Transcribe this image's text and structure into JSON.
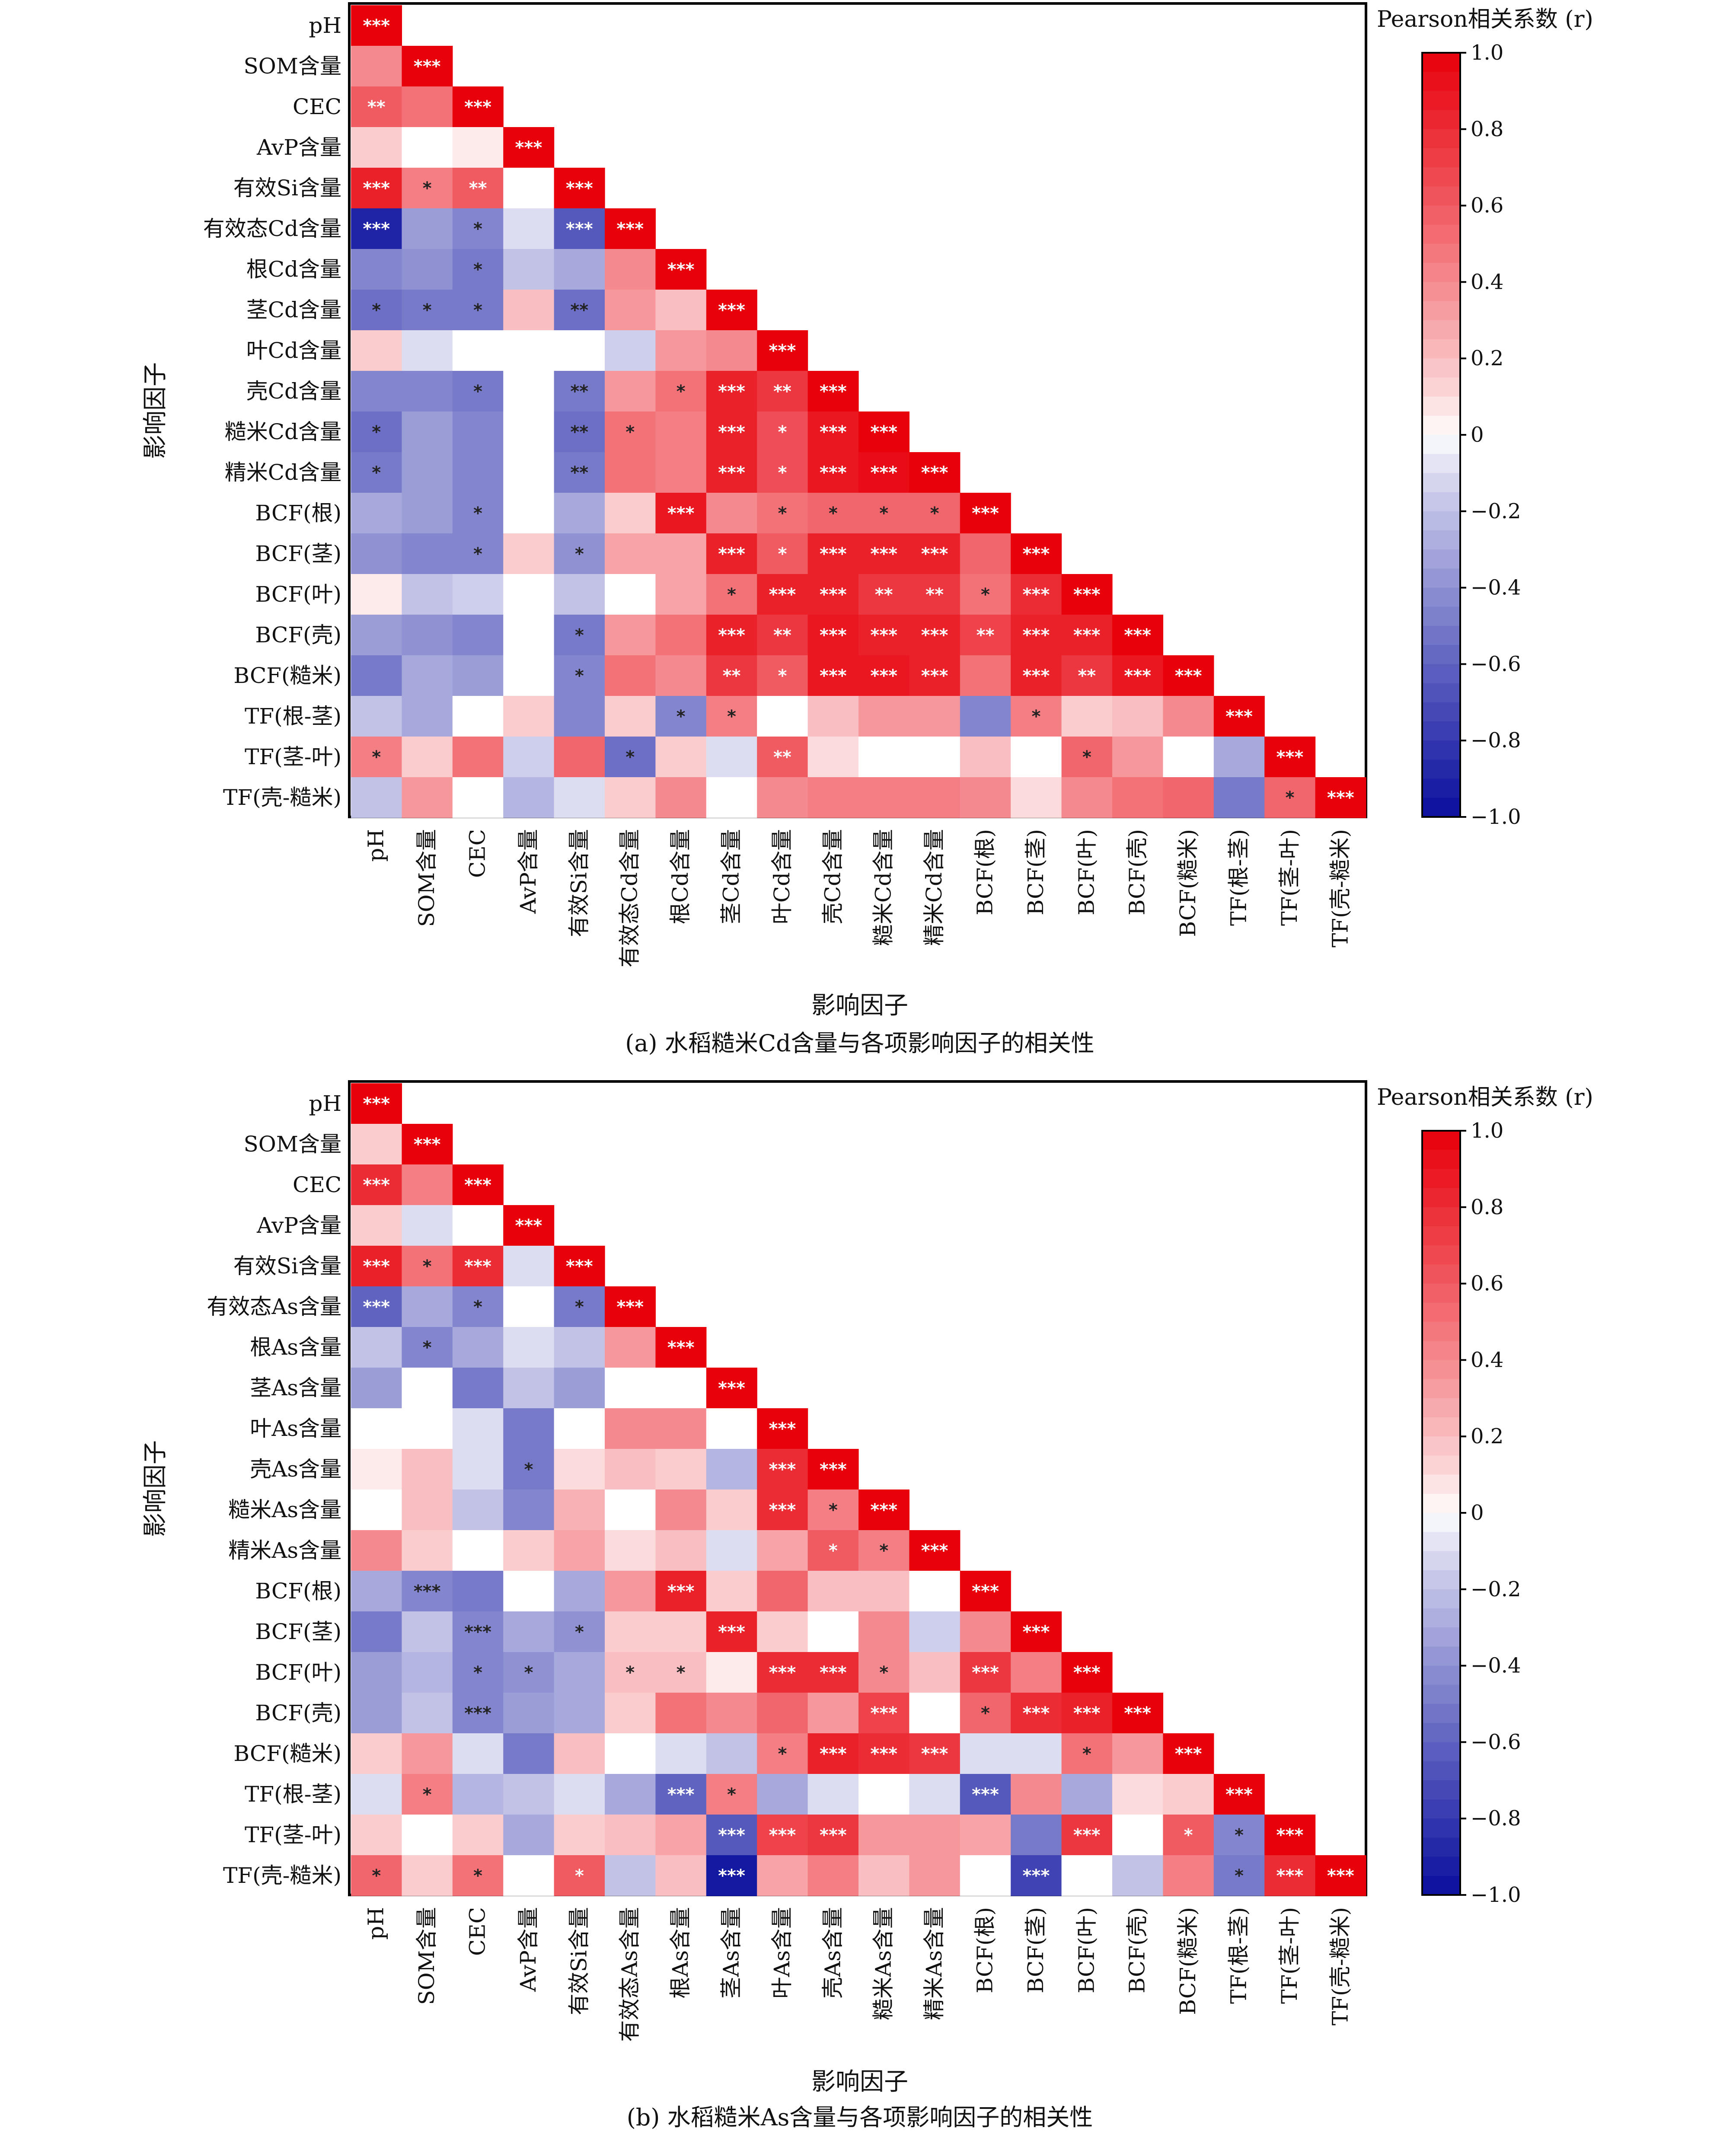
{
  "chart_data": [
    {
      "type": "heatmap",
      "panel": "a",
      "caption": "(a) 水稻糙米Cd含量与各项影响因子的相关性",
      "xlabel": "影响因子",
      "ylabel": "影响因子",
      "colorbar_title": "Pearson相关系数 (r)",
      "colorbar_ticks": [
        "1.0",
        "0.8",
        "0.6",
        "0.4",
        "0.2",
        "0",
        "−0.2",
        "−0.4",
        "−0.6",
        "−0.8",
        "−1.0"
      ],
      "colorbar_range": [
        -1,
        1
      ],
      "colors": {
        "positive": "#e8000b",
        "negative": "#0a0f9e",
        "zero": "#ffffff"
      },
      "labels": [
        "pH",
        "SOM含量",
        "CEC",
        "AvP含量",
        "有效Si含量",
        "有效态Cd含量",
        "根Cd含量",
        "茎Cd含量",
        "叶Cd含量",
        "壳Cd含量",
        "糙米Cd含量",
        "精米Cd含量",
        "BCF(根)",
        "BCF(茎)",
        "BCF(叶)",
        "BCF(壳)",
        "BCF(糙米)",
        "TF(根-茎)",
        "TF(茎-叶)",
        "TF(壳-糙米)"
      ],
      "values": [
        [
          1.0
        ],
        [
          0.4,
          1.0
        ],
        [
          0.6,
          0.5,
          1.0
        ],
        [
          0.15,
          0.0,
          0.05,
          1.0
        ],
        [
          0.85,
          0.45,
          0.6,
          0.0,
          1.0
        ],
        [
          -0.9,
          -0.35,
          -0.45,
          -0.1,
          -0.65,
          1.0
        ],
        [
          -0.45,
          -0.4,
          -0.5,
          -0.2,
          -0.3,
          0.4,
          1.0
        ],
        [
          -0.55,
          -0.5,
          -0.5,
          0.2,
          -0.55,
          0.35,
          0.2,
          1.0
        ],
        [
          0.15,
          -0.1,
          0.0,
          0.0,
          0.0,
          -0.15,
          0.35,
          0.4,
          1.0
        ],
        [
          -0.45,
          -0.45,
          -0.5,
          0.0,
          -0.5,
          0.35,
          0.5,
          0.85,
          0.75,
          1.0
        ],
        [
          -0.55,
          -0.35,
          -0.45,
          0.0,
          -0.55,
          0.5,
          0.45,
          0.85,
          0.65,
          0.9,
          1.0
        ],
        [
          -0.5,
          -0.35,
          -0.45,
          0.0,
          -0.5,
          0.5,
          0.45,
          0.85,
          0.65,
          0.9,
          0.95,
          1.0
        ],
        [
          -0.3,
          -0.35,
          -0.45,
          0.0,
          -0.3,
          0.15,
          0.9,
          0.4,
          0.5,
          0.55,
          0.55,
          0.55,
          1.0
        ],
        [
          -0.4,
          -0.45,
          -0.45,
          0.15,
          -0.4,
          0.3,
          0.3,
          0.85,
          0.6,
          0.85,
          0.85,
          0.85,
          0.55,
          1.0
        ],
        [
          0.05,
          -0.2,
          -0.15,
          0.0,
          -0.2,
          0.0,
          0.3,
          0.5,
          0.85,
          0.85,
          0.75,
          0.75,
          0.5,
          0.8,
          1.0
        ],
        [
          -0.35,
          -0.4,
          -0.45,
          0.0,
          -0.5,
          0.35,
          0.5,
          0.85,
          0.75,
          0.9,
          0.85,
          0.85,
          0.7,
          0.85,
          0.85,
          1.0
        ],
        [
          -0.5,
          -0.3,
          -0.35,
          0.0,
          -0.45,
          0.5,
          0.4,
          0.75,
          0.6,
          0.9,
          0.9,
          0.85,
          0.5,
          0.85,
          0.75,
          0.9,
          1.0
        ],
        [
          -0.2,
          -0.3,
          0.0,
          0.15,
          -0.45,
          0.15,
          -0.45,
          0.45,
          0.0,
          0.2,
          0.35,
          0.35,
          -0.45,
          0.45,
          0.15,
          0.2,
          0.4,
          1.0
        ],
        [
          0.45,
          0.15,
          0.5,
          -0.15,
          0.55,
          -0.55,
          0.15,
          -0.1,
          0.6,
          0.1,
          0.0,
          0.0,
          0.2,
          0.0,
          0.55,
          0.35,
          0.0,
          -0.3,
          1.0
        ],
        [
          -0.2,
          0.35,
          0.0,
          -0.25,
          -0.1,
          0.15,
          0.4,
          0.0,
          0.4,
          0.45,
          0.45,
          0.45,
          0.4,
          0.1,
          0.4,
          0.5,
          0.55,
          -0.5,
          0.55,
          1.0
        ]
      ],
      "significance": [
        [
          "***"
        ],
        [
          "",
          "***"
        ],
        [
          "**",
          "",
          "***"
        ],
        [
          "",
          "",
          "",
          "***"
        ],
        [
          "***",
          "*",
          "**",
          "",
          "***"
        ],
        [
          "***",
          "",
          "*",
          "",
          "***",
          "***"
        ],
        [
          "",
          "",
          "*",
          "",
          "",
          "",
          "***"
        ],
        [
          "*",
          "*",
          "*",
          "",
          "**",
          "",
          "",
          "***"
        ],
        [
          "",
          "",
          "",
          "",
          "",
          "",
          "",
          "",
          "***"
        ],
        [
          "",
          "",
          "*",
          "",
          "**",
          "",
          "*",
          "***",
          "**",
          "***"
        ],
        [
          "*",
          "",
          "",
          "",
          "**",
          "*",
          "",
          "***",
          "*",
          "***",
          "***"
        ],
        [
          "*",
          "",
          "",
          "",
          "**",
          "",
          "",
          "***",
          "*",
          "***",
          "***",
          "***"
        ],
        [
          "",
          "",
          "*",
          "",
          "",
          "",
          "***",
          "",
          "*",
          "*",
          "*",
          "*",
          "***"
        ],
        [
          "",
          "",
          "*",
          "",
          "*",
          "",
          "",
          "***",
          "*",
          "***",
          "***",
          "***",
          "",
          "***"
        ],
        [
          "",
          "",
          "",
          "",
          "",
          "",
          "",
          "*",
          "***",
          "***",
          "**",
          "**",
          "*",
          "***",
          "***"
        ],
        [
          "",
          "",
          "",
          "",
          "*",
          "",
          "",
          "***",
          "**",
          "***",
          "***",
          "***",
          "**",
          "***",
          "***",
          "***"
        ],
        [
          "",
          "",
          "",
          "",
          "*",
          "",
          "",
          "**",
          "*",
          "***",
          "***",
          "***",
          "",
          "***",
          "**",
          "***",
          "***"
        ],
        [
          "",
          "",
          "",
          "",
          "",
          "",
          "*",
          "*",
          "",
          "",
          "",
          "",
          "",
          "*",
          "",
          "",
          "",
          "***"
        ],
        [
          "*",
          "",
          "",
          "",
          "",
          "*",
          "",
          "",
          "**",
          "",
          "",
          "",
          "",
          "",
          "*",
          "",
          "",
          "",
          "***"
        ],
        [
          "",
          "",
          "",
          "",
          "",
          "",
          "",
          "",
          "",
          "",
          "",
          "",
          "",
          "",
          "",
          "",
          "",
          "",
          "*",
          "***"
        ]
      ]
    },
    {
      "type": "heatmap",
      "panel": "b",
      "caption": "(b) 水稻糙米As含量与各项影响因子的相关性",
      "xlabel": "影响因子",
      "ylabel": "影响因子",
      "colorbar_title": "Pearson相关系数 (r)",
      "colorbar_ticks": [
        "1.0",
        "0.8",
        "0.6",
        "0.4",
        "0.2",
        "0",
        "−0.2",
        "−0.4",
        "−0.6",
        "−0.8",
        "−1.0"
      ],
      "colorbar_range": [
        -1,
        1
      ],
      "colors": {
        "positive": "#e8000b",
        "negative": "#0a0f9e",
        "zero": "#ffffff"
      },
      "labels": [
        "pH",
        "SOM含量",
        "CEC",
        "AvP含量",
        "有效Si含量",
        "有效态As含量",
        "根As含量",
        "茎As含量",
        "叶As含量",
        "壳As含量",
        "糙米As含量",
        "精米As含量",
        "BCF(根)",
        "BCF(茎)",
        "BCF(叶)",
        "BCF(壳)",
        "BCF(糙米)",
        "TF(根-茎)",
        "TF(茎-叶)",
        "TF(壳-糙米)"
      ],
      "values": [
        [
          1.0
        ],
        [
          0.15,
          1.0
        ],
        [
          0.8,
          0.45,
          1.0
        ],
        [
          0.15,
          -0.1,
          0.0,
          1.0
        ],
        [
          0.85,
          0.5,
          0.8,
          -0.1,
          1.0
        ],
        [
          -0.6,
          -0.3,
          -0.45,
          0.0,
          -0.5,
          1.0
        ],
        [
          -0.2,
          -0.45,
          -0.3,
          -0.1,
          -0.2,
          0.35,
          1.0
        ],
        [
          -0.35,
          0.0,
          -0.5,
          -0.2,
          -0.35,
          0.0,
          0.0,
          1.0
        ],
        [
          0.0,
          0.0,
          -0.1,
          -0.5,
          0.0,
          0.4,
          0.4,
          0.0,
          1.0
        ],
        [
          0.05,
          0.2,
          -0.1,
          -0.5,
          0.1,
          0.2,
          0.15,
          -0.25,
          0.8,
          1.0
        ],
        [
          0.0,
          0.2,
          -0.2,
          -0.45,
          0.25,
          0.0,
          0.4,
          0.15,
          0.8,
          0.45,
          1.0
        ],
        [
          0.4,
          0.15,
          0.0,
          0.15,
          0.3,
          0.1,
          0.2,
          -0.1,
          0.3,
          0.6,
          0.45,
          1.0
        ],
        [
          -0.3,
          -0.45,
          -0.5,
          0.0,
          -0.3,
          0.35,
          0.85,
          0.15,
          0.55,
          0.2,
          0.2,
          0.0,
          1.0
        ],
        [
          -0.5,
          -0.2,
          -0.45,
          -0.3,
          -0.4,
          0.15,
          0.15,
          0.85,
          0.15,
          0.0,
          0.4,
          -0.15,
          0.4,
          1.0
        ],
        [
          -0.35,
          -0.25,
          -0.45,
          -0.4,
          -0.3,
          0.2,
          0.2,
          0.05,
          0.8,
          0.8,
          0.4,
          0.2,
          0.75,
          0.45,
          1.0
        ],
        [
          -0.35,
          -0.2,
          -0.45,
          -0.35,
          -0.3,
          0.15,
          0.5,
          0.4,
          0.55,
          0.35,
          0.7,
          0.0,
          0.55,
          0.8,
          0.85,
          1.0
        ],
        [
          0.15,
          0.35,
          -0.1,
          -0.5,
          0.2,
          0.0,
          -0.1,
          -0.2,
          0.45,
          0.85,
          0.8,
          0.75,
          -0.1,
          -0.1,
          0.5,
          0.35,
          1.0
        ],
        [
          -0.1,
          0.45,
          -0.25,
          -0.2,
          -0.1,
          -0.3,
          -0.6,
          0.45,
          -0.3,
          -0.1,
          0.0,
          -0.1,
          -0.65,
          0.4,
          -0.3,
          0.1,
          0.15,
          1.0
        ],
        [
          0.15,
          0.0,
          0.15,
          -0.3,
          0.15,
          0.2,
          0.3,
          -0.65,
          0.7,
          0.75,
          0.35,
          0.35,
          0.3,
          -0.5,
          0.75,
          0.0,
          0.6,
          -0.45,
          1.0
        ],
        [
          0.55,
          0.15,
          0.5,
          0.0,
          0.6,
          -0.2,
          0.2,
          -0.95,
          0.3,
          0.45,
          0.2,
          0.35,
          0.0,
          -0.75,
          0.0,
          -0.2,
          0.45,
          -0.5,
          0.8,
          1.0
        ]
      ],
      "significance": [
        [
          "***"
        ],
        [
          "",
          "***"
        ],
        [
          "***",
          "",
          "***"
        ],
        [
          "",
          "",
          "",
          "***"
        ],
        [
          "***",
          "*",
          "***",
          "",
          "***"
        ],
        [
          "***",
          "",
          "*",
          "",
          "*",
          "***"
        ],
        [
          "",
          "*",
          "",
          "",
          "",
          "",
          "***"
        ],
        [
          "",
          "",
          "",
          "",
          "",
          "",
          "",
          "***"
        ],
        [
          "",
          "",
          "",
          "",
          "",
          "",
          "",
          "",
          "***"
        ],
        [
          "",
          "",
          "",
          "*",
          "",
          "",
          "",
          "",
          "***",
          "***"
        ],
        [
          "",
          "",
          "",
          "",
          "",
          "",
          "",
          "",
          "***",
          "*",
          "***"
        ],
        [
          "",
          "",
          "",
          "",
          "",
          "",
          "",
          "",
          "",
          "*",
          "*",
          "***"
        ],
        [
          "",
          "***",
          "",
          "",
          "",
          "",
          "***",
          "",
          "",
          "",
          "",
          "",
          "***"
        ],
        [
          "",
          "",
          "***",
          "",
          "*",
          "",
          "",
          "***",
          "",
          "",
          "",
          "",
          "",
          "***"
        ],
        [
          "",
          "",
          "*",
          "*",
          "",
          "*",
          "*",
          "",
          "***",
          "***",
          "*",
          "",
          "***",
          "",
          "***"
        ],
        [
          "",
          "",
          "***",
          "",
          "",
          "",
          "",
          "",
          "",
          "",
          "***",
          "",
          "*",
          "***",
          "***",
          "***"
        ],
        [
          "",
          "",
          "",
          "",
          "",
          "",
          "",
          "",
          "*",
          "***",
          "***",
          "***",
          "",
          "",
          "*",
          "",
          "***"
        ],
        [
          "",
          "*",
          "",
          "",
          "",
          "",
          "***",
          "*",
          "",
          "",
          "",
          "",
          "***",
          "",
          "",
          "",
          "",
          "***"
        ],
        [
          "",
          "",
          "",
          "",
          "",
          "",
          "",
          "***",
          "***",
          "***",
          "",
          "",
          "",
          "",
          "***",
          "",
          "*",
          "*",
          "***"
        ],
        [
          "*",
          "",
          "*",
          "",
          "*",
          "",
          "",
          "***",
          "",
          "",
          "",
          "",
          "",
          "***",
          "",
          "",
          "",
          "*",
          "***",
          "***"
        ]
      ]
    }
  ]
}
